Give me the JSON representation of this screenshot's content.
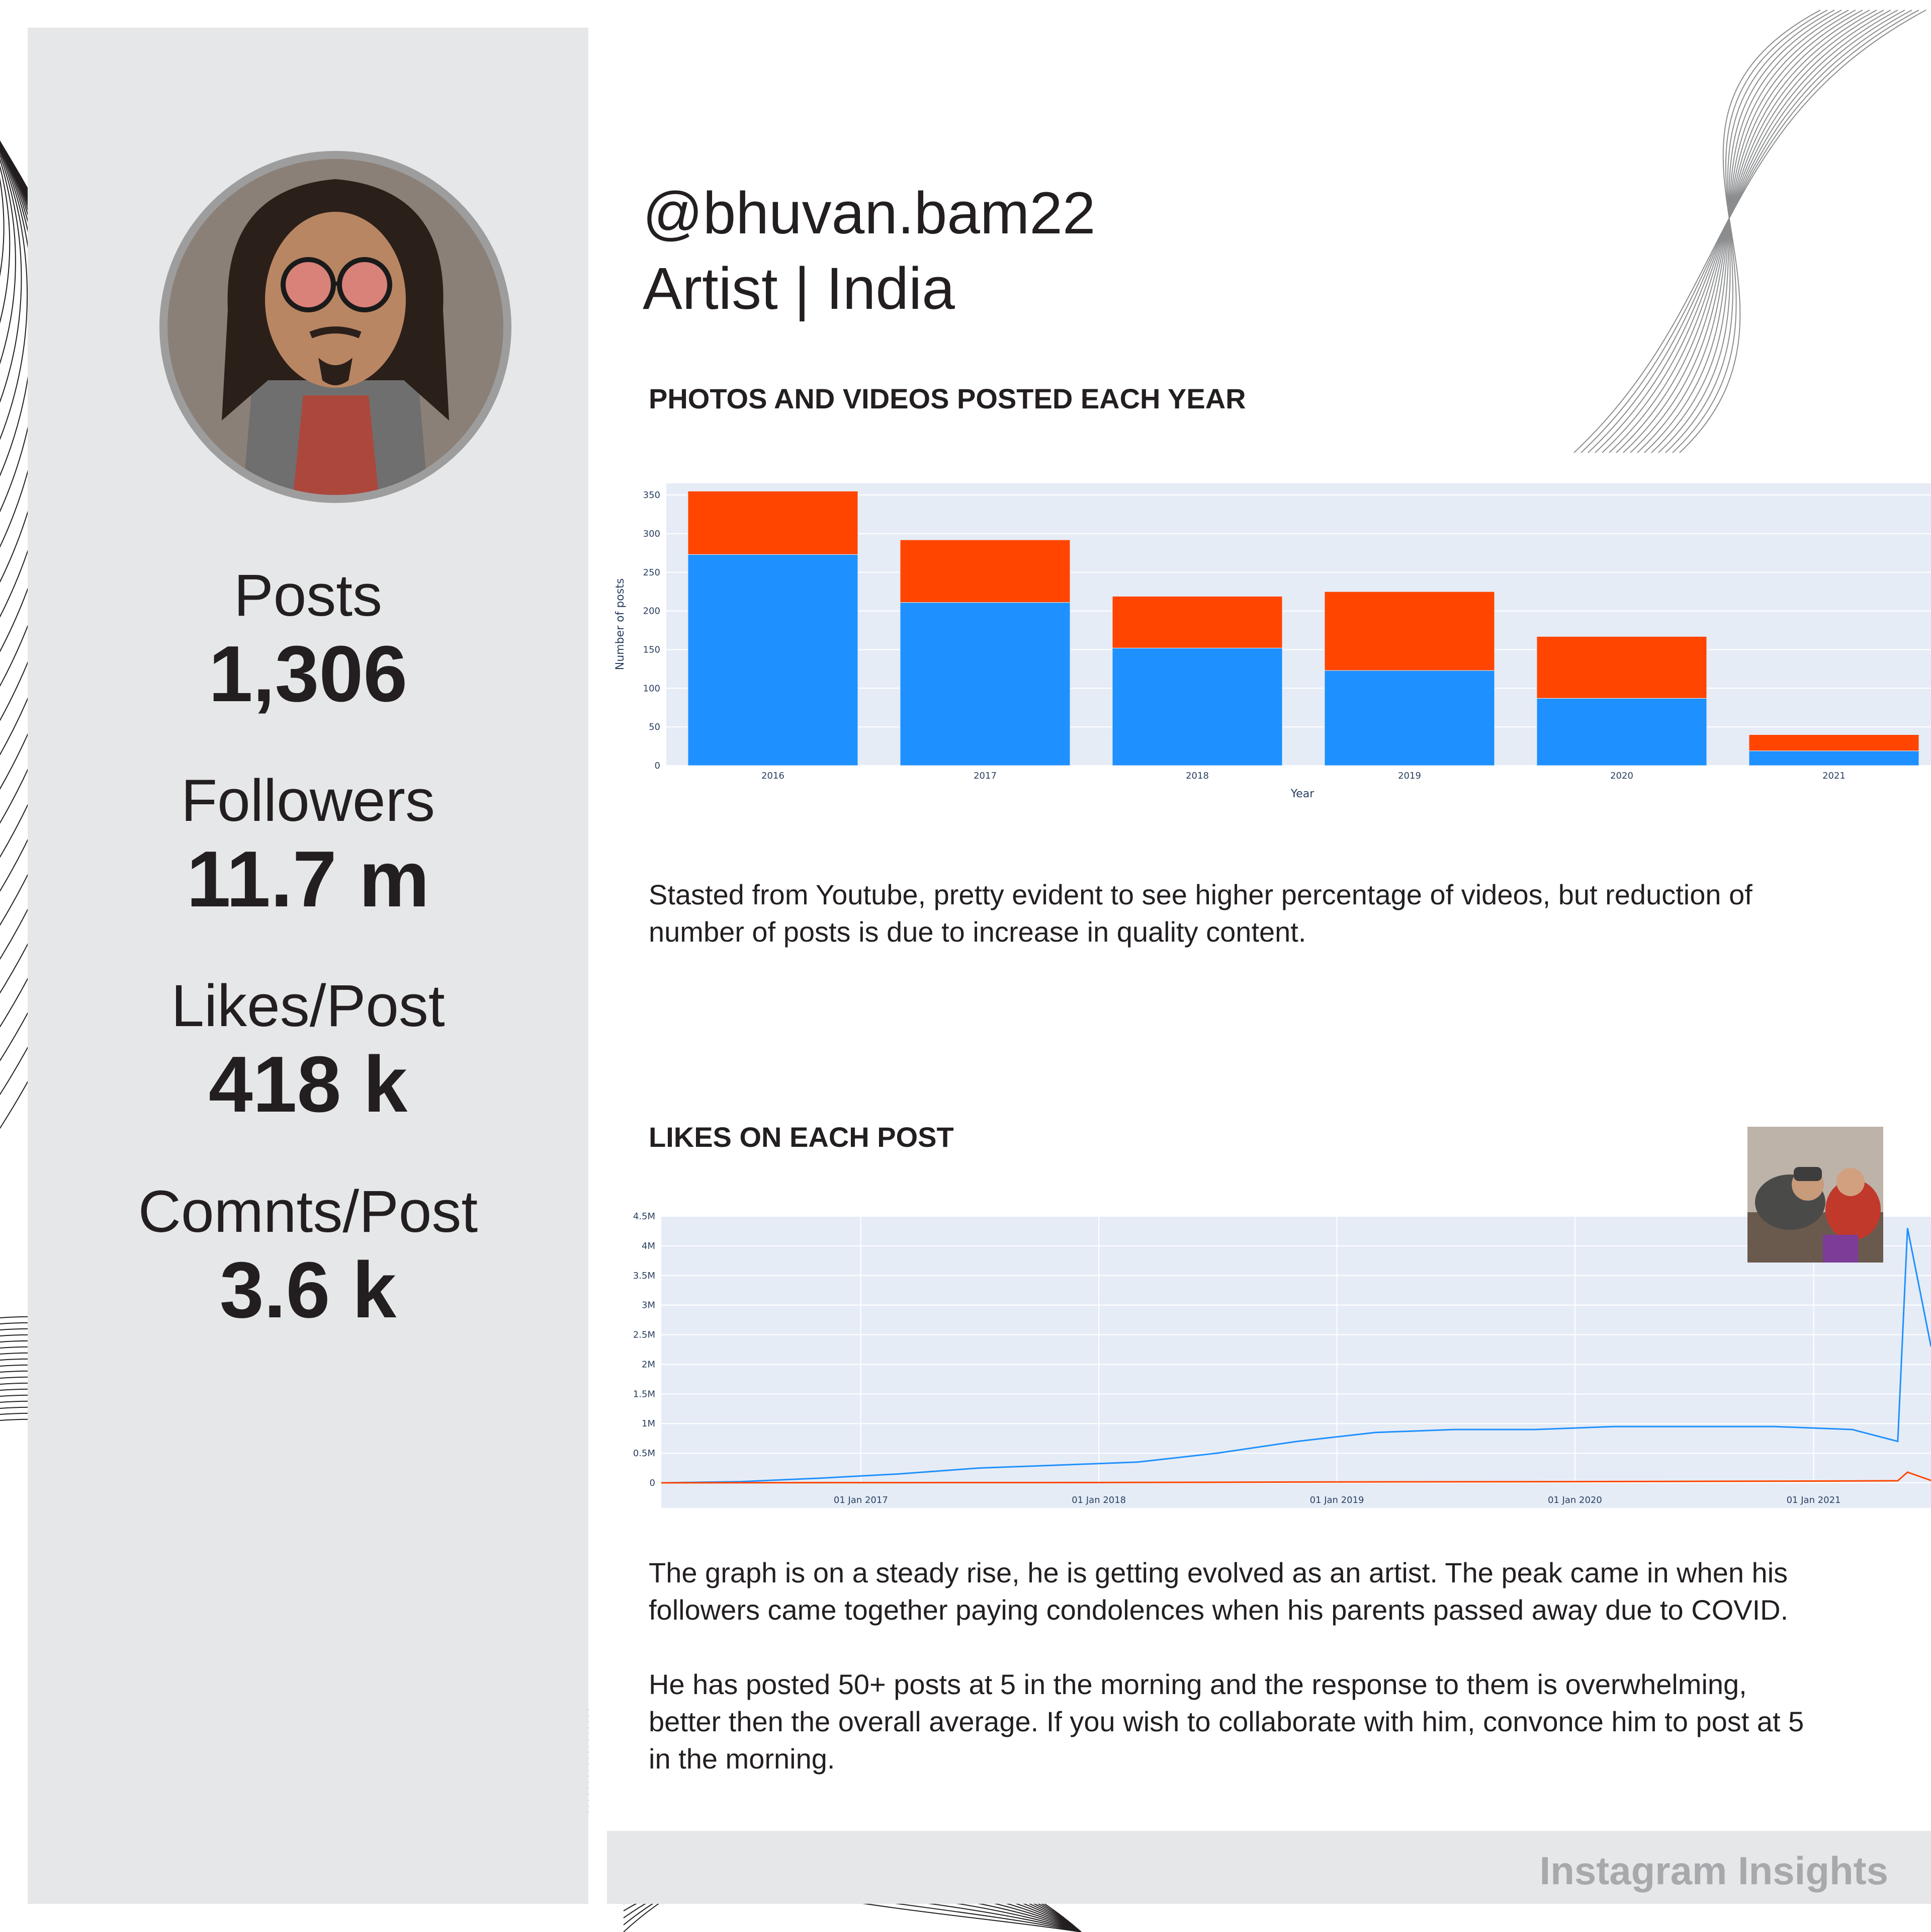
{
  "profile": {
    "handle": "@bhuvan.bam22",
    "subtitle": "Artist | India"
  },
  "stats": [
    {
      "label": "Posts",
      "value": "1,306"
    },
    {
      "label": "Followers",
      "value": "11.7 m"
    },
    {
      "label": "Likes/Post",
      "value": "418 k"
    },
    {
      "label": "Comnts/Post",
      "value": "3.6 k"
    }
  ],
  "sections": {
    "posts_title": "PHOTOS AND VIDEOS POSTED EACH YEAR",
    "posts_desc": "Stasted from Youtube, pretty evident to see higher percentage of videos, but reduction of number of posts is due to increase in quality content.",
    "likes_title": "LIKES ON EACH POST",
    "likes_desc_1": "The graph is on a steady rise, he is getting evolved as an  artist. The peak came in when his followers came together paying condolences when his parents passed away due to COVID.",
    "likes_desc_2": "He has posted 50+ posts at 5 in the morning and the response to them is overwhelming, better then the overall average. If you wish to collaborate with him, convonce him to post at 5 in the morning."
  },
  "footer": {
    "label": "Instagram Insights"
  },
  "colors": {
    "sidebar": "#e6e7e8",
    "series_blue": "#1e90ff",
    "series_red": "#ff4500",
    "plot_bg": "#e5ecf6"
  },
  "chart_data": [
    {
      "type": "bar",
      "stacked": true,
      "categories": [
        "2016",
        "2017",
        "2018",
        "2019",
        "2020",
        "2021"
      ],
      "series": [
        {
          "values": [
            273,
            211,
            152,
            123,
            87,
            19
          ]
        },
        {
          "values": [
            82,
            81,
            67,
            102,
            80,
            21
          ]
        }
      ],
      "xlabel": "Year",
      "ylabel": "Number of posts",
      "ylim": [
        0,
        365
      ],
      "yticks": [
        0,
        50,
        100,
        150,
        200,
        250,
        300,
        350
      ],
      "ytick_labels": [
        "0",
        "50",
        "100",
        "150",
        "200",
        "250",
        "300",
        "350"
      ]
    },
    {
      "type": "line",
      "x_range": [
        "2016-03-01",
        "2021-06-30"
      ],
      "xticks": [
        "2017-01-01",
        "2018-01-01",
        "2019-01-01",
        "2020-01-01",
        "2021-01-01"
      ],
      "xtick_labels": [
        "01 Jan 2017",
        "01 Jan 2018",
        "01 Jan 2019",
        "01 Jan 2020",
        "01 Jan 2021"
      ],
      "ylim": [
        0,
        4500000
      ],
      "yticks": [
        0,
        500000,
        1000000,
        1500000,
        2000000,
        2500000,
        3000000,
        3500000,
        4000000,
        4500000
      ],
      "ytick_labels": [
        "0",
        "0.5M",
        "1M",
        "1.5M",
        "2M",
        "2.5M",
        "3M",
        "3.5M",
        "4M",
        "4.5M"
      ],
      "series": [
        {
          "x": [
            "2016-03-01",
            "2016-07-01",
            "2016-11-01",
            "2017-03-01",
            "2017-07-01",
            "2017-11-01",
            "2018-03-01",
            "2018-07-01",
            "2018-11-01",
            "2019-03-01",
            "2019-07-01",
            "2019-11-01",
            "2020-03-01",
            "2020-07-01",
            "2020-11-01",
            "2021-03-01",
            "2021-05-10",
            "2021-05-25",
            "2021-06-30"
          ],
          "y": [
            0,
            20000,
            80000,
            150000,
            250000,
            300000,
            350000,
            500000,
            700000,
            850000,
            900000,
            900000,
            950000,
            950000,
            950000,
            900000,
            700000,
            4300000,
            2300000
          ]
        },
        {
          "x": [
            "2016-03-01",
            "2017-01-01",
            "2018-01-01",
            "2019-01-01",
            "2020-01-01",
            "2021-01-01",
            "2021-05-10",
            "2021-05-25",
            "2021-06-30"
          ],
          "y": [
            0,
            3000,
            5000,
            15000,
            20000,
            30000,
            35000,
            180000,
            40000
          ]
        }
      ]
    }
  ]
}
